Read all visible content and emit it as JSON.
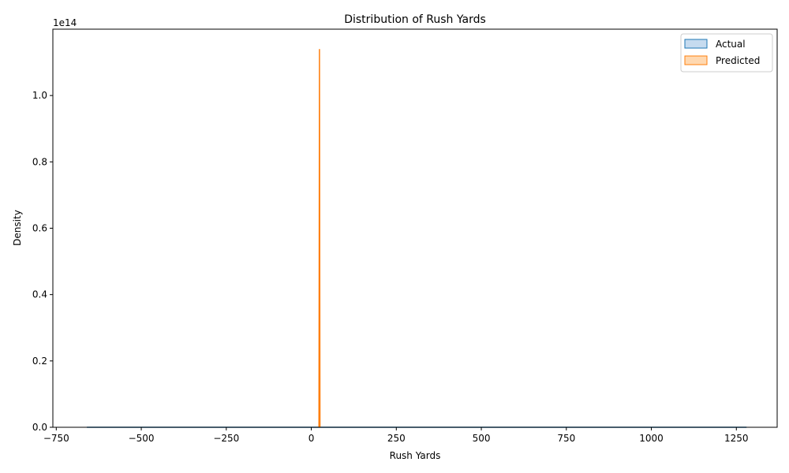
{
  "chart_data": {
    "type": "area",
    "title": "Distribution of Rush Yards",
    "xlabel": "Rush Yards",
    "ylabel": "Density",
    "y_offset_text": "1e14",
    "xlim": [
      -760,
      1370
    ],
    "ylim": [
      0,
      120000000000000.0
    ],
    "x_ticks": [
      -750,
      -500,
      -250,
      0,
      250,
      500,
      750,
      1000,
      1250
    ],
    "x_tick_labels": [
      "−750",
      "−500",
      "−250",
      "0",
      "250",
      "500",
      "750",
      "1000",
      "1250"
    ],
    "y_ticks": [
      0,
      20000000000000.0,
      40000000000000.0,
      60000000000000.0,
      80000000000000.0,
      100000000000000.0
    ],
    "y_tick_labels": [
      "0.0",
      "0.2",
      "0.4",
      "0.6",
      "0.8",
      "1.0"
    ],
    "grid": false,
    "legend_position": "top-right",
    "series": [
      {
        "name": "Actual",
        "color": "#1f77b4",
        "fill": "#c6dbef",
        "x": [
          -660,
          -400,
          0,
          400,
          800,
          1280
        ],
        "y": [
          0,
          0,
          0,
          0,
          0,
          0
        ]
      },
      {
        "name": "Predicted",
        "color": "#ff7f0e",
        "fill": "#ffd8b0",
        "x": [
          22.5,
          24.0,
          25.5
        ],
        "y": [
          0,
          114000000000000.0,
          0
        ]
      }
    ]
  }
}
